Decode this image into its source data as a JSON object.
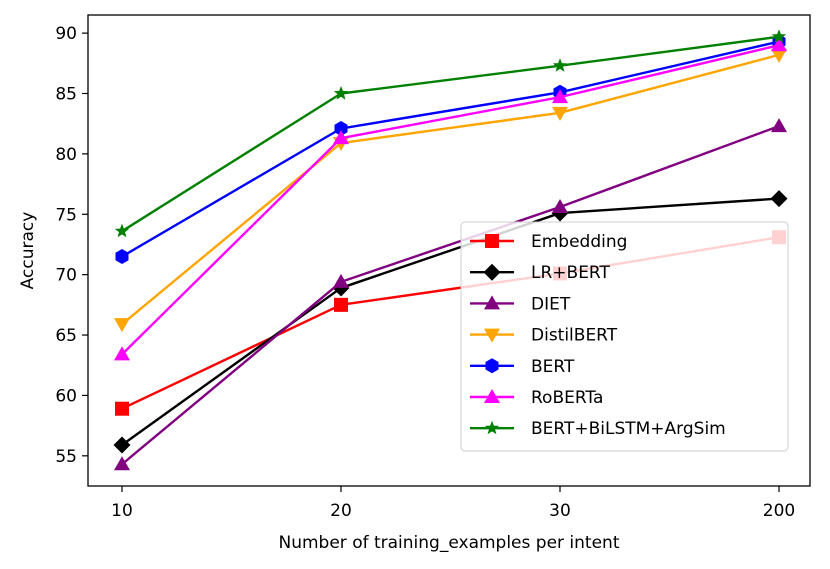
{
  "chart_data": {
    "type": "line",
    "title": "",
    "xlabel": "Number of training_examples per intent",
    "ylabel": "Accuracy",
    "categories": [
      "10",
      "20",
      "30",
      "200"
    ],
    "ylim": [
      52.5,
      91.5
    ],
    "yticks": [
      55,
      60,
      65,
      70,
      75,
      80,
      85,
      90
    ],
    "grid": false,
    "legend_position": "center-right",
    "series": [
      {
        "name": "Embedding",
        "values": [
          58.9,
          67.5,
          70.1,
          73.1
        ],
        "color": "#ff0000",
        "marker": "square"
      },
      {
        "name": "LR+BERT",
        "values": [
          55.9,
          68.9,
          75.1,
          76.3
        ],
        "color": "#000000",
        "marker": "diamond"
      },
      {
        "name": "DIET",
        "values": [
          54.3,
          69.4,
          75.6,
          82.3
        ],
        "color": "#800080",
        "marker": "triangle-up"
      },
      {
        "name": "DistilBERT",
        "values": [
          65.9,
          80.9,
          83.4,
          88.2
        ],
        "color": "#ffa500",
        "marker": "triangle-down"
      },
      {
        "name": "BERT",
        "values": [
          71.5,
          82.1,
          85.1,
          89.3
        ],
        "color": "#0000ff",
        "marker": "hexagon"
      },
      {
        "name": "RoBERTa",
        "values": [
          63.4,
          81.3,
          84.7,
          89.0
        ],
        "color": "#ff00ff",
        "marker": "triangle-up"
      },
      {
        "name": "BERT+BiLSTM+ArgSim",
        "values": [
          73.6,
          85.0,
          87.3,
          89.7
        ],
        "color": "#008000",
        "marker": "star"
      }
    ]
  }
}
